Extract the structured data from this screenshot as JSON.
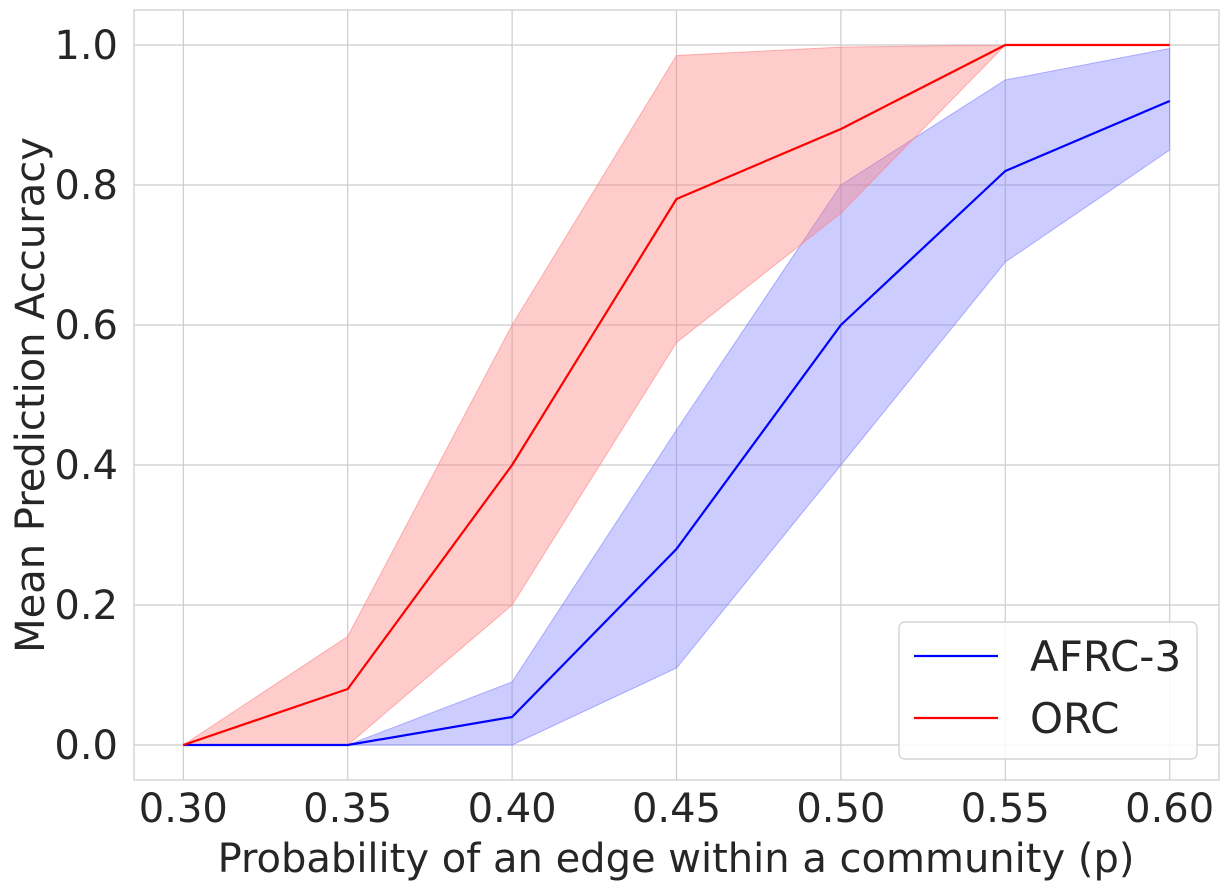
{
  "chart_data": {
    "type": "line",
    "title": "",
    "xlabel": "Probability of an edge within a community (p)",
    "ylabel": "Mean Prediction Accuracy",
    "x": [
      0.3,
      0.35,
      0.4,
      0.45,
      0.5,
      0.55,
      0.6
    ],
    "xlim": [
      0.285,
      0.615
    ],
    "ylim": [
      -0.05,
      1.05
    ],
    "xticks": [
      0.3,
      0.35,
      0.4,
      0.45,
      0.5,
      0.55,
      0.6
    ],
    "xtick_labels": [
      "0.30",
      "0.35",
      "0.40",
      "0.45",
      "0.50",
      "0.55",
      "0.60"
    ],
    "yticks": [
      0.0,
      0.2,
      0.4,
      0.6,
      0.8,
      1.0
    ],
    "ytick_labels": [
      "0.0",
      "0.2",
      "0.4",
      "0.6",
      "0.8",
      "1.0"
    ],
    "grid": true,
    "legend_position": "bottom-right",
    "series": [
      {
        "name": "AFRC-3",
        "color": "#0000ff",
        "band_color": "#8080ff",
        "values": [
          0.0,
          0.0,
          0.04,
          0.28,
          0.6,
          0.82,
          0.92
        ],
        "lower": [
          0.0,
          0.0,
          0.0,
          0.11,
          0.4,
          0.69,
          0.85
        ],
        "upper": [
          0.0,
          0.0,
          0.09,
          0.45,
          0.8,
          0.95,
          0.995
        ]
      },
      {
        "name": "ORC",
        "color": "#ff0000",
        "band_color": "#ff8080",
        "values": [
          0.0,
          0.08,
          0.4,
          0.78,
          0.88,
          1.0,
          1.0
        ],
        "lower": [
          0.0,
          0.0,
          0.2,
          0.575,
          0.76,
          1.0,
          1.0
        ],
        "upper": [
          0.0,
          0.155,
          0.6,
          0.985,
          0.997,
          1.0,
          1.0
        ]
      }
    ]
  }
}
